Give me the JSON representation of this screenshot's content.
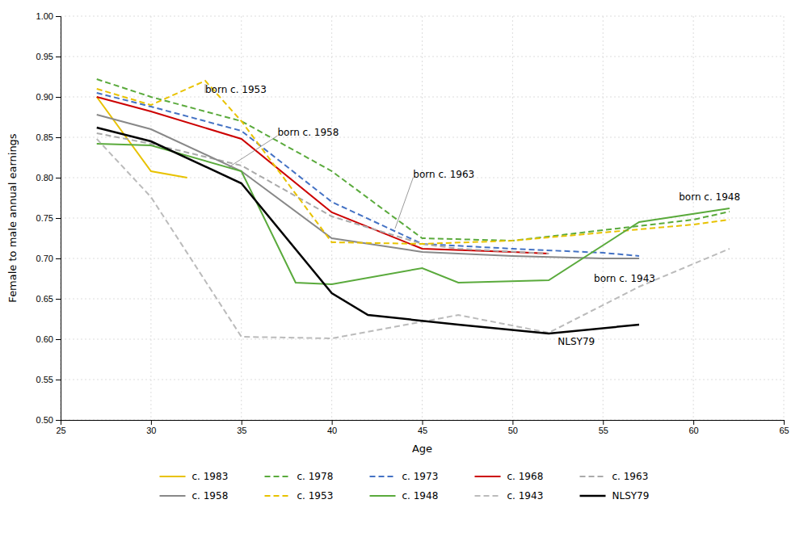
{
  "chart_data": {
    "type": "line",
    "xlabel": "Age",
    "ylabel": "Female to male annual earnings",
    "xlim": [
      25,
      65
    ],
    "ylim": [
      0.5,
      1.0
    ],
    "xticks": [
      25,
      30,
      35,
      40,
      45,
      50,
      55,
      60,
      65
    ],
    "yticks": [
      {
        "value": 0.5,
        "label": "0.50"
      },
      {
        "value": 0.55,
        "label": "0.55"
      },
      {
        "value": 0.6,
        "label": "0.60"
      },
      {
        "value": 0.65,
        "label": "0.65"
      },
      {
        "value": 0.7,
        "label": "0.70"
      },
      {
        "value": 0.75,
        "label": "0.75"
      },
      {
        "value": 0.8,
        "label": "0.80"
      },
      {
        "value": 0.85,
        "label": "0.85"
      },
      {
        "value": 0.9,
        "label": "0.90"
      },
      {
        "value": 0.95,
        "label": "0.95"
      },
      {
        "value": 1.0,
        "label": "1.00"
      }
    ],
    "grid": true,
    "legend": "bottom",
    "series": [
      {
        "name": "c. 1983",
        "color": "#E8C200",
        "line_style": "solid",
        "x": [
          27,
          30,
          32
        ],
        "values": [
          0.9,
          0.808,
          0.8
        ]
      },
      {
        "name": "c. 1978",
        "color": "#5AAA3C",
        "line_style": "dashed",
        "x": [
          27,
          30,
          35,
          40,
          45,
          50,
          55,
          60,
          62
        ],
        "values": [
          0.922,
          0.9,
          0.87,
          0.808,
          0.725,
          0.722,
          0.735,
          0.748,
          0.758
        ]
      },
      {
        "name": "c. 1973",
        "color": "#4472C4",
        "line_style": "dashed",
        "x": [
          27,
          30,
          35,
          40,
          45,
          50,
          55,
          57
        ],
        "values": [
          0.905,
          0.888,
          0.858,
          0.77,
          0.718,
          0.712,
          0.707,
          0.703
        ]
      },
      {
        "name": "c. 1968",
        "color": "#CC0000",
        "line_style": "solid",
        "x": [
          27,
          30,
          35,
          40,
          45,
          50,
          52
        ],
        "values": [
          0.9,
          0.882,
          0.848,
          0.757,
          0.712,
          0.708,
          0.706
        ]
      },
      {
        "name": "c. 1963",
        "color": "#AAAAAA",
        "line_style": "dashed",
        "x": [
          27,
          30,
          35,
          40,
          45,
          47,
          52
        ],
        "values": [
          0.855,
          0.842,
          0.815,
          0.752,
          0.718,
          0.712,
          0.706
        ]
      },
      {
        "name": "c. 1958",
        "color": "#888888",
        "line_style": "solid",
        "x": [
          27,
          30,
          35,
          40,
          45,
          50,
          55,
          57
        ],
        "values": [
          0.878,
          0.86,
          0.808,
          0.725,
          0.708,
          0.703,
          0.7,
          0.7
        ]
      },
      {
        "name": "c. 1953",
        "color": "#E8C200",
        "line_style": "dashed",
        "x": [
          27,
          30,
          33,
          35,
          40,
          45,
          50,
          55,
          60,
          62
        ],
        "values": [
          0.91,
          0.89,
          0.92,
          0.87,
          0.72,
          0.718,
          0.722,
          0.732,
          0.742,
          0.748
        ]
      },
      {
        "name": "c. 1948",
        "color": "#5AAA3C",
        "line_style": "solid",
        "x": [
          27,
          30,
          35,
          38,
          40,
          45,
          47,
          52,
          57,
          62
        ],
        "values": [
          0.842,
          0.84,
          0.808,
          0.67,
          0.668,
          0.688,
          0.67,
          0.673,
          0.745,
          0.762
        ]
      },
      {
        "name": "c. 1943",
        "color": "#BBBBBB",
        "line_style": "dashed",
        "x": [
          27,
          30,
          35,
          40,
          47,
          52,
          57,
          62
        ],
        "values": [
          0.848,
          0.776,
          0.603,
          0.601,
          0.63,
          0.608,
          0.665,
          0.712
        ]
      },
      {
        "name": "NLSY79",
        "color": "#000000",
        "line_style": "solid",
        "x": [
          27,
          30,
          35,
          40,
          42,
          47,
          52,
          57
        ],
        "values": [
          0.862,
          0.845,
          0.793,
          0.657,
          0.63,
          0.618,
          0.607,
          0.618
        ]
      }
    ],
    "annotations": [
      {
        "text": "born c. 1953",
        "x": 33.0,
        "y": 0.916,
        "text_x": 33.0,
        "text_y": 0.905
      },
      {
        "text": "born c. 1958",
        "x": 34.3,
        "y": 0.813,
        "text_x": 37.0,
        "text_y": 0.852
      },
      {
        "text": "born c. 1963",
        "x": 43.5,
        "y": 0.737,
        "text_x": 44.5,
        "text_y": 0.8
      },
      {
        "text": "born c. 1948",
        "text_x": 59.2,
        "text_y": 0.776
      },
      {
        "text": "born c. 1943",
        "text_x": 54.5,
        "text_y": 0.675
      },
      {
        "text": "NLSY79",
        "text_x": 52.5,
        "text_y": 0.597
      }
    ]
  }
}
